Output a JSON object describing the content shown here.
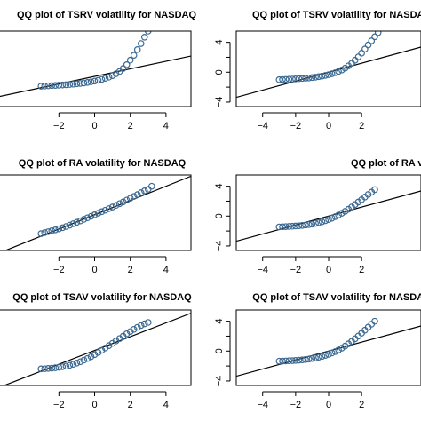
{
  "colors": {
    "points": "#3d6a92",
    "line": "#000000",
    "background": "#ffffff"
  },
  "chart_data": [
    {
      "type": "scatter",
      "title": "QQ plot of TSRV volatility for NASDAQ",
      "xlim": [
        -5.4,
        5.4
      ],
      "ylim": [
        -4,
        6
      ],
      "xticks": [
        -4,
        -2,
        0,
        2,
        4
      ],
      "yticks": [
        -4,
        0,
        4
      ],
      "show_xtick_labels": [
        "-2",
        "0",
        "2",
        "4"
      ],
      "show_ytick_labels": [],
      "refline": {
        "slope": 0.5,
        "intercept": 0.0
      },
      "points": [
        [
          -3.0,
          -1.3
        ],
        [
          -2.8,
          -1.28
        ],
        [
          -2.6,
          -1.25
        ],
        [
          -2.4,
          -1.22
        ],
        [
          -2.2,
          -1.2
        ],
        [
          -2.0,
          -1.17
        ],
        [
          -1.8,
          -1.14
        ],
        [
          -1.6,
          -1.11
        ],
        [
          -1.4,
          -1.07
        ],
        [
          -1.2,
          -1.03
        ],
        [
          -1.0,
          -0.98
        ],
        [
          -0.8,
          -0.93
        ],
        [
          -0.6,
          -0.87
        ],
        [
          -0.4,
          -0.8
        ],
        [
          -0.2,
          -0.72
        ],
        [
          0.0,
          -0.63
        ],
        [
          0.2,
          -0.52
        ],
        [
          0.4,
          -0.4
        ],
        [
          0.6,
          -0.26
        ],
        [
          0.8,
          -0.1
        ],
        [
          1.0,
          0.1
        ],
        [
          1.2,
          0.35
        ],
        [
          1.4,
          0.65
        ],
        [
          1.6,
          1.05
        ],
        [
          1.8,
          1.55
        ],
        [
          2.0,
          2.15
        ],
        [
          2.2,
          2.8
        ],
        [
          2.4,
          3.55
        ],
        [
          2.6,
          4.35
        ],
        [
          2.8,
          5.2
        ],
        [
          3.0,
          6.0
        ]
      ]
    },
    {
      "type": "scatter",
      "title": "QQ plot of TSRV volatility for NASDAQ",
      "xlim": [
        -5.6,
        5.6
      ],
      "ylim": [
        -4.6,
        5.5
      ],
      "xticks": [
        -4,
        -2,
        0,
        2,
        4
      ],
      "yticks": [
        -4,
        -2,
        0,
        2,
        4
      ],
      "show_xtick_labels": [
        "-4",
        "-2",
        "0",
        "2"
      ],
      "show_ytick_labels": [
        "-4",
        "0",
        "4"
      ],
      "refline": {
        "slope": 0.6,
        "intercept": 0.0
      },
      "points": [
        [
          -3.0,
          -1.0
        ],
        [
          -2.8,
          -0.98
        ],
        [
          -2.6,
          -0.96
        ],
        [
          -2.4,
          -0.94
        ],
        [
          -2.2,
          -0.92
        ],
        [
          -2.0,
          -0.9
        ],
        [
          -1.8,
          -0.87
        ],
        [
          -1.6,
          -0.84
        ],
        [
          -1.4,
          -0.81
        ],
        [
          -1.2,
          -0.77
        ],
        [
          -1.0,
          -0.72
        ],
        [
          -0.8,
          -0.67
        ],
        [
          -0.6,
          -0.6
        ],
        [
          -0.4,
          -0.52
        ],
        [
          -0.2,
          -0.43
        ],
        [
          0.0,
          -0.33
        ],
        [
          0.2,
          -0.21
        ],
        [
          0.4,
          -0.07
        ],
        [
          0.6,
          0.1
        ],
        [
          0.8,
          0.3
        ],
        [
          1.0,
          0.55
        ],
        [
          1.2,
          0.85
        ],
        [
          1.4,
          1.2
        ],
        [
          1.6,
          1.6
        ],
        [
          1.8,
          2.05
        ],
        [
          2.0,
          2.55
        ],
        [
          2.2,
          3.1
        ],
        [
          2.4,
          3.65
        ],
        [
          2.6,
          4.2
        ],
        [
          2.8,
          4.75
        ],
        [
          3.0,
          5.3
        ]
      ]
    },
    {
      "type": "scatter",
      "title": "QQ plot of RA volatility for NASDAQ",
      "xlim": [
        -5.4,
        5.4
      ],
      "ylim": [
        -3.5,
        3.9
      ],
      "xticks": [
        -4,
        -2,
        0,
        2,
        4
      ],
      "yticks": [
        -4,
        -2,
        0,
        2,
        4
      ],
      "show_xtick_labels": [
        "-2",
        "0",
        "2",
        "4"
      ],
      "show_ytick_labels": [],
      "refline": {
        "slope": 0.7,
        "intercept": 0.0
      },
      "points": [
        [
          -3.0,
          -1.85
        ],
        [
          -2.8,
          -1.75
        ],
        [
          -2.6,
          -1.66
        ],
        [
          -2.4,
          -1.57
        ],
        [
          -2.2,
          -1.48
        ],
        [
          -2.0,
          -1.38
        ],
        [
          -1.8,
          -1.27
        ],
        [
          -1.6,
          -1.15
        ],
        [
          -1.4,
          -1.02
        ],
        [
          -1.2,
          -0.88
        ],
        [
          -1.0,
          -0.74
        ],
        [
          -0.8,
          -0.6
        ],
        [
          -0.6,
          -0.45
        ],
        [
          -0.4,
          -0.3
        ],
        [
          -0.2,
          -0.15
        ],
        [
          0.0,
          0.0
        ],
        [
          0.2,
          0.15
        ],
        [
          0.4,
          0.3
        ],
        [
          0.6,
          0.45
        ],
        [
          0.8,
          0.6
        ],
        [
          1.0,
          0.76
        ],
        [
          1.2,
          0.92
        ],
        [
          1.4,
          1.09
        ],
        [
          1.6,
          1.26
        ],
        [
          1.8,
          1.44
        ],
        [
          2.0,
          1.62
        ],
        [
          2.2,
          1.8
        ],
        [
          2.4,
          1.98
        ],
        [
          2.6,
          2.16
        ],
        [
          2.8,
          2.35
        ],
        [
          3.0,
          2.5
        ],
        [
          3.2,
          2.8
        ]
      ]
    },
    {
      "type": "scatter",
      "title": "QQ plot of RA volatility for NASDAQ",
      "xlim": [
        -5.6,
        5.6
      ],
      "ylim": [
        -4.6,
        5.5
      ],
      "xticks": [
        -4,
        -2,
        0,
        2,
        4
      ],
      "yticks": [
        -4,
        -2,
        0,
        2,
        4
      ],
      "show_xtick_labels": [
        "-4",
        "-2",
        "0",
        "2"
      ],
      "show_ytick_labels": [
        "-4",
        "0",
        "4"
      ],
      "refline": {
        "slope": 0.6,
        "intercept": 0.0
      },
      "points": [
        [
          -3.0,
          -1.45
        ],
        [
          -2.8,
          -1.43
        ],
        [
          -2.6,
          -1.41
        ],
        [
          -2.4,
          -1.39
        ],
        [
          -2.2,
          -1.36
        ],
        [
          -2.0,
          -1.33
        ],
        [
          -1.8,
          -1.29
        ],
        [
          -1.6,
          -1.25
        ],
        [
          -1.4,
          -1.2
        ],
        [
          -1.2,
          -1.14
        ],
        [
          -1.0,
          -1.07
        ],
        [
          -0.8,
          -0.98
        ],
        [
          -0.6,
          -0.88
        ],
        [
          -0.4,
          -0.76
        ],
        [
          -0.2,
          -0.62
        ],
        [
          0.0,
          -0.46
        ],
        [
          0.2,
          -0.28
        ],
        [
          0.4,
          -0.08
        ],
        [
          0.6,
          0.14
        ],
        [
          0.8,
          0.38
        ],
        [
          1.0,
          0.64
        ],
        [
          1.2,
          0.92
        ],
        [
          1.4,
          1.22
        ],
        [
          1.6,
          1.54
        ],
        [
          1.8,
          1.88
        ],
        [
          2.0,
          2.2
        ],
        [
          2.2,
          2.55
        ],
        [
          2.4,
          2.9
        ],
        [
          2.6,
          3.2
        ],
        [
          2.8,
          3.55
        ]
      ]
    },
    {
      "type": "scatter",
      "title": "QQ plot of TSAV volatility for NASDAQ",
      "xlim": [
        -5.4,
        5.4
      ],
      "ylim": [
        -3.8,
        4.4
      ],
      "xticks": [
        -4,
        -2,
        0,
        2,
        4
      ],
      "yticks": [
        -4,
        -2,
        0,
        2,
        4
      ],
      "show_xtick_labels": [
        "-2",
        "0",
        "2",
        "4"
      ],
      "show_ytick_labels": [],
      "refline": {
        "slope": 0.75,
        "intercept": 0.0
      },
      "points": [
        [
          -3.0,
          -2.0
        ],
        [
          -2.8,
          -1.98
        ],
        [
          -2.6,
          -1.95
        ],
        [
          -2.4,
          -1.92
        ],
        [
          -2.2,
          -1.88
        ],
        [
          -2.0,
          -1.83
        ],
        [
          -1.8,
          -1.77
        ],
        [
          -1.6,
          -1.7
        ],
        [
          -1.4,
          -1.61
        ],
        [
          -1.2,
          -1.5
        ],
        [
          -1.0,
          -1.37
        ],
        [
          -0.8,
          -1.22
        ],
        [
          -0.6,
          -1.05
        ],
        [
          -0.4,
          -0.87
        ],
        [
          -0.2,
          -0.67
        ],
        [
          0.0,
          -0.45
        ],
        [
          0.2,
          -0.22
        ],
        [
          0.4,
          0.02
        ],
        [
          0.6,
          0.27
        ],
        [
          0.8,
          0.52
        ],
        [
          1.0,
          0.78
        ],
        [
          1.2,
          1.04
        ],
        [
          1.4,
          1.3
        ],
        [
          1.6,
          1.56
        ],
        [
          1.8,
          1.82
        ],
        [
          2.0,
          2.06
        ],
        [
          2.2,
          2.3
        ],
        [
          2.4,
          2.52
        ],
        [
          2.6,
          2.72
        ],
        [
          2.8,
          2.9
        ],
        [
          3.0,
          3.05
        ]
      ]
    },
    {
      "type": "scatter",
      "title": "QQ plot of TSAV volatility for NASDAQ",
      "xlim": [
        -5.6,
        5.6
      ],
      "ylim": [
        -4.6,
        5.5
      ],
      "xticks": [
        -4,
        -2,
        0,
        2,
        4
      ],
      "yticks": [
        -4,
        -2,
        0,
        2,
        4
      ],
      "show_xtick_labels": [
        "-4",
        "-2",
        "0",
        "2"
      ],
      "show_ytick_labels": [
        "-4",
        "0",
        "4"
      ],
      "refline": {
        "slope": 0.6,
        "intercept": 0.0
      },
      "points": [
        [
          -3.0,
          -1.35
        ],
        [
          -2.8,
          -1.34
        ],
        [
          -2.6,
          -1.32
        ],
        [
          -2.4,
          -1.3
        ],
        [
          -2.2,
          -1.28
        ],
        [
          -2.0,
          -1.25
        ],
        [
          -1.8,
          -1.22
        ],
        [
          -1.6,
          -1.18
        ],
        [
          -1.4,
          -1.13
        ],
        [
          -1.2,
          -1.07
        ],
        [
          -1.0,
          -1.0
        ],
        [
          -0.8,
          -0.92
        ],
        [
          -0.6,
          -0.82
        ],
        [
          -0.4,
          -0.71
        ],
        [
          -0.2,
          -0.58
        ],
        [
          0.0,
          -0.43
        ],
        [
          0.2,
          -0.26
        ],
        [
          0.4,
          -0.07
        ],
        [
          0.6,
          0.15
        ],
        [
          0.8,
          0.4
        ],
        [
          1.0,
          0.68
        ],
        [
          1.2,
          0.98
        ],
        [
          1.4,
          1.3
        ],
        [
          1.6,
          1.65
        ],
        [
          1.8,
          2.02
        ],
        [
          2.0,
          2.4
        ],
        [
          2.2,
          2.8
        ],
        [
          2.4,
          3.2
        ],
        [
          2.6,
          3.6
        ],
        [
          2.8,
          4.0
        ]
      ]
    }
  ]
}
